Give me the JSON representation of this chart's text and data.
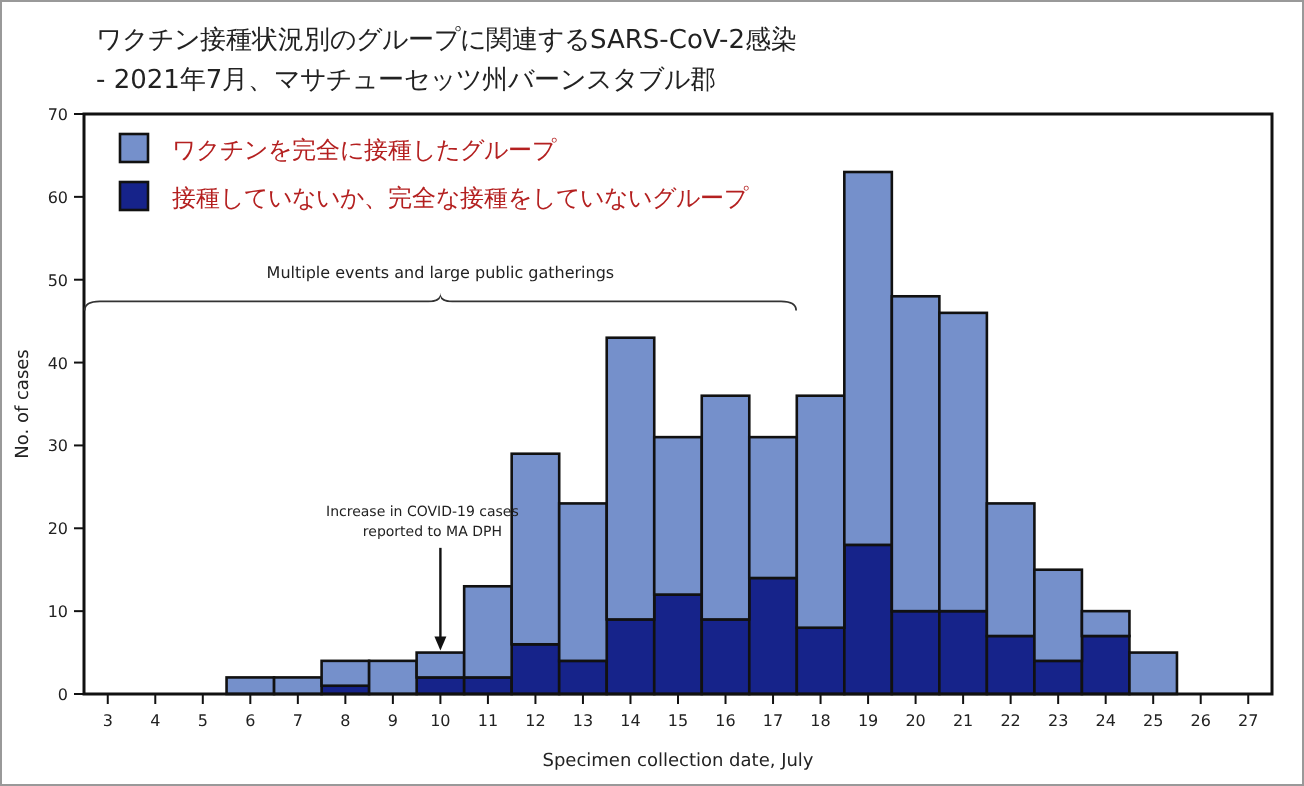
{
  "chart_data": {
    "type": "bar",
    "title": "ワクチン接種状況別のグループに関連するSARS-CoV-2感染",
    "subtitle": "- 2021年7月、マサチューセッツ州バーンスタブル郡",
    "xlabel": "Specimen collection date, July",
    "ylabel": "No. of cases",
    "categories": [
      "3",
      "4",
      "5",
      "6",
      "7",
      "8",
      "9",
      "10",
      "11",
      "12",
      "13",
      "14",
      "15",
      "16",
      "17",
      "18",
      "19",
      "20",
      "21",
      "22",
      "23",
      "24",
      "25",
      "26",
      "27"
    ],
    "stacked": true,
    "series": [
      {
        "name": "接種していないか、完全な接種をしていないグループ",
        "color": "#16238a",
        "values": [
          0,
          0,
          0,
          0,
          0,
          1,
          0,
          2,
          2,
          6,
          4,
          9,
          12,
          9,
          14,
          8,
          18,
          10,
          10,
          7,
          4,
          7,
          0,
          0,
          0
        ]
      },
      {
        "name": "ワクチンを完全に接種したグループ",
        "color": "#7590cb",
        "values": [
          0,
          0,
          0,
          2,
          2,
          3,
          4,
          3,
          11,
          23,
          19,
          34,
          19,
          27,
          17,
          28,
          45,
          38,
          36,
          16,
          11,
          3,
          5,
          0,
          0
        ]
      }
    ],
    "ylim": [
      0,
      70
    ],
    "yticks": [
      0,
      10,
      20,
      30,
      40,
      50,
      60,
      70
    ],
    "grid": false,
    "legend": "top left",
    "annotations": [
      "Multiple events and large public gatherings",
      {
        "text": "Increase in COVID-19 cases reported to MA DPH",
        "x": "10",
        "y": 5
      }
    ]
  }
}
